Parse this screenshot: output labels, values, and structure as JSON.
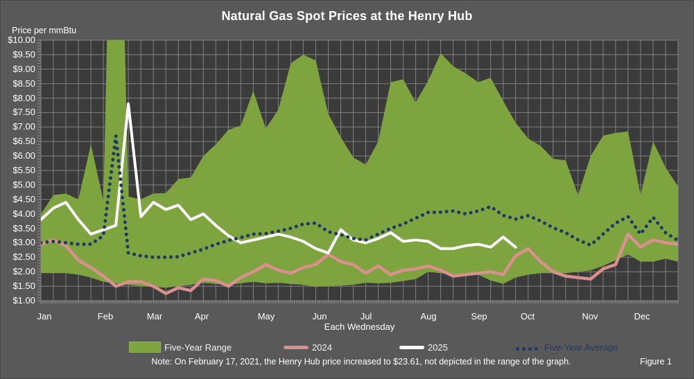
{
  "title": "Natural Gas Spot Prices at the Henry Hub",
  "y_axis": {
    "title": "Price per mmBtu",
    "tick_prefix": "$"
  },
  "x_axis": {
    "title": "Each Wednesday"
  },
  "legend": {
    "items": [
      {
        "label": "Five-Year Range",
        "type": "band",
        "color": "#7EA43F"
      },
      {
        "label": "2024",
        "type": "line",
        "color": "#D9908F"
      },
      {
        "label": "2025",
        "type": "line",
        "color": "#FFFFFF"
      },
      {
        "label": "Five-Year Average",
        "type": "dotted",
        "color": "#1F3864"
      }
    ]
  },
  "note": "Note: On February 17, 2021, the Henry Hub price increased to $23.61, not depicted in the range of the graph.",
  "figure_label": "Figure 1",
  "colors": {
    "background": "#595959",
    "plot_background": "#3B3B3B",
    "gridline": "#9A9A9A",
    "range_green": "#7EA43F",
    "line_2024": "#D9908F",
    "line_2025": "#FFFFFF",
    "five_year_avg_navy": "#1F3864",
    "text": "#FFFFFF"
  },
  "chart_data": {
    "type": "area",
    "title": "Natural Gas Spot Prices at the Henry Hub",
    "xlabel": "Each Wednesday",
    "ylabel": "Price per mmBtu",
    "ylim": [
      1,
      10
    ],
    "y_tick_step": 0.5,
    "weeks": 52,
    "x_tick_labels": [
      "Jan",
      "Feb",
      "Mar",
      "Apr",
      "May",
      "Jun",
      "Jul",
      "Aug",
      "Sep",
      "Oct",
      "Nov",
      "Dec"
    ],
    "grid": true,
    "legend_position": "bottom",
    "band": {
      "name": "Five-Year Range",
      "color": "#7EA43F",
      "upper": [
        4.0,
        4.65,
        4.7,
        4.5,
        6.4,
        4.45,
        23.61,
        4.6,
        4.5,
        4.7,
        4.72,
        5.2,
        5.26,
        6.0,
        6.4,
        6.9,
        7.05,
        8.25,
        6.95,
        7.6,
        9.2,
        9.5,
        9.3,
        7.45,
        6.65,
        5.95,
        5.7,
        6.5,
        8.55,
        8.65,
        7.85,
        8.6,
        9.55,
        9.1,
        8.85,
        8.55,
        8.7,
        7.9,
        7.15,
        6.6,
        6.35,
        5.9,
        5.85,
        4.65,
        6.0,
        6.7,
        6.8,
        6.85,
        4.65,
        6.5,
        5.6,
        4.95
      ],
      "lower": [
        1.95,
        1.95,
        1.95,
        1.9,
        1.8,
        1.65,
        1.6,
        1.55,
        1.5,
        1.48,
        1.45,
        1.5,
        1.55,
        1.62,
        1.58,
        1.55,
        1.6,
        1.65,
        1.6,
        1.62,
        1.58,
        1.55,
        1.48,
        1.5,
        1.52,
        1.55,
        1.62,
        1.6,
        1.62,
        1.68,
        1.75,
        2.0,
        1.95,
        1.9,
        1.88,
        1.9,
        1.7,
        1.58,
        1.8,
        1.9,
        1.95,
        1.95,
        1.95,
        2.0,
        2.05,
        2.2,
        2.4,
        2.6,
        2.35,
        2.35,
        2.45,
        2.35
      ],
      "clipped_value_note": "Week of Feb 17, 2021 upper value 23.61 is clipped at top of plot"
    },
    "series": [
      {
        "name": "2024",
        "color": "#D9908F",
        "style": "solid",
        "values": [
          2.95,
          3.1,
          2.9,
          2.4,
          2.15,
          1.85,
          1.5,
          1.65,
          1.65,
          1.5,
          1.25,
          1.45,
          1.35,
          1.75,
          1.7,
          1.5,
          1.8,
          2.0,
          2.25,
          2.05,
          1.95,
          2.15,
          2.25,
          2.6,
          2.35,
          2.25,
          1.95,
          2.2,
          1.9,
          2.05,
          2.1,
          2.2,
          2.05,
          1.85,
          1.9,
          1.95,
          2.0,
          1.9,
          2.55,
          2.8,
          2.35,
          2.0,
          1.85,
          1.8,
          1.75,
          2.1,
          2.25,
          3.3,
          2.85,
          3.1,
          3.0,
          2.95
        ]
      },
      {
        "name": "2025",
        "color": "#FFFFFF",
        "style": "solid",
        "values": [
          3.8,
          4.2,
          4.4,
          3.8,
          3.3,
          3.45,
          3.6,
          7.8,
          3.9,
          4.4,
          4.15,
          4.3,
          3.8,
          4.0,
          3.6,
          3.25,
          3.0,
          3.1,
          3.2,
          3.3,
          3.2,
          3.05,
          2.8,
          2.65,
          3.45,
          3.1,
          3.0,
          3.15,
          3.35,
          3.05,
          3.1,
          3.05,
          2.8,
          2.8,
          2.9,
          2.95,
          2.85,
          3.2,
          2.85
        ]
      },
      {
        "name": "Five-Year Average",
        "color": "#1F3864",
        "style": "dotted",
        "values": [
          3.0,
          3.05,
          3.0,
          2.95,
          2.95,
          3.25,
          6.7,
          2.65,
          2.55,
          2.5,
          2.5,
          2.52,
          2.65,
          2.78,
          2.95,
          3.08,
          3.18,
          3.3,
          3.32,
          3.4,
          3.5,
          3.65,
          3.68,
          3.38,
          3.28,
          3.15,
          3.1,
          3.3,
          3.5,
          3.65,
          3.85,
          4.05,
          4.06,
          4.1,
          4.0,
          4.1,
          4.25,
          3.95,
          3.82,
          3.94,
          3.75,
          3.52,
          3.35,
          3.1,
          2.92,
          3.3,
          3.68,
          3.9,
          3.3,
          3.88,
          3.35,
          3.08
        ]
      }
    ]
  }
}
